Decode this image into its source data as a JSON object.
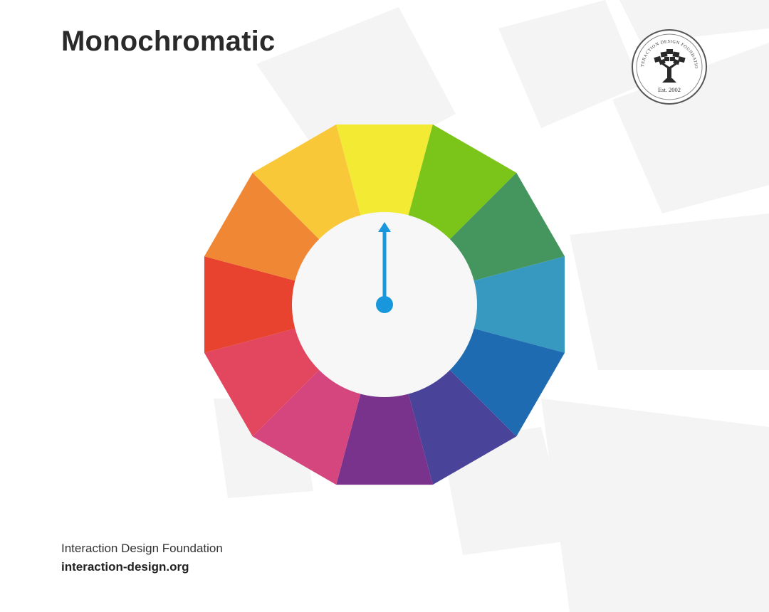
{
  "header": {
    "title": "Monochromatic"
  },
  "logo": {
    "ring_text": "INTERACTION DESIGN FOUNDATION",
    "est_text": "Est. 2002",
    "icon": "tree-icon"
  },
  "wheel": {
    "segments": [
      {
        "color": "#F2EA33"
      },
      {
        "color": "#7BC41A"
      },
      {
        "color": "#44965E"
      },
      {
        "color": "#3799C0"
      },
      {
        "color": "#1F6BB1"
      },
      {
        "color": "#4A439A"
      },
      {
        "color": "#7A338C"
      },
      {
        "color": "#D5467F"
      },
      {
        "color": "#E2475F"
      },
      {
        "color": "#E8432F"
      },
      {
        "color": "#F08734"
      },
      {
        "color": "#F9C838"
      }
    ],
    "inner_fill": "#F7F7F7",
    "pointer_color": "#1997DD",
    "pointer_target": "yellow",
    "pointer_icon": "arrow-up-icon"
  },
  "footer": {
    "org": "Interaction Design Foundation",
    "url": "interaction-design.org"
  }
}
